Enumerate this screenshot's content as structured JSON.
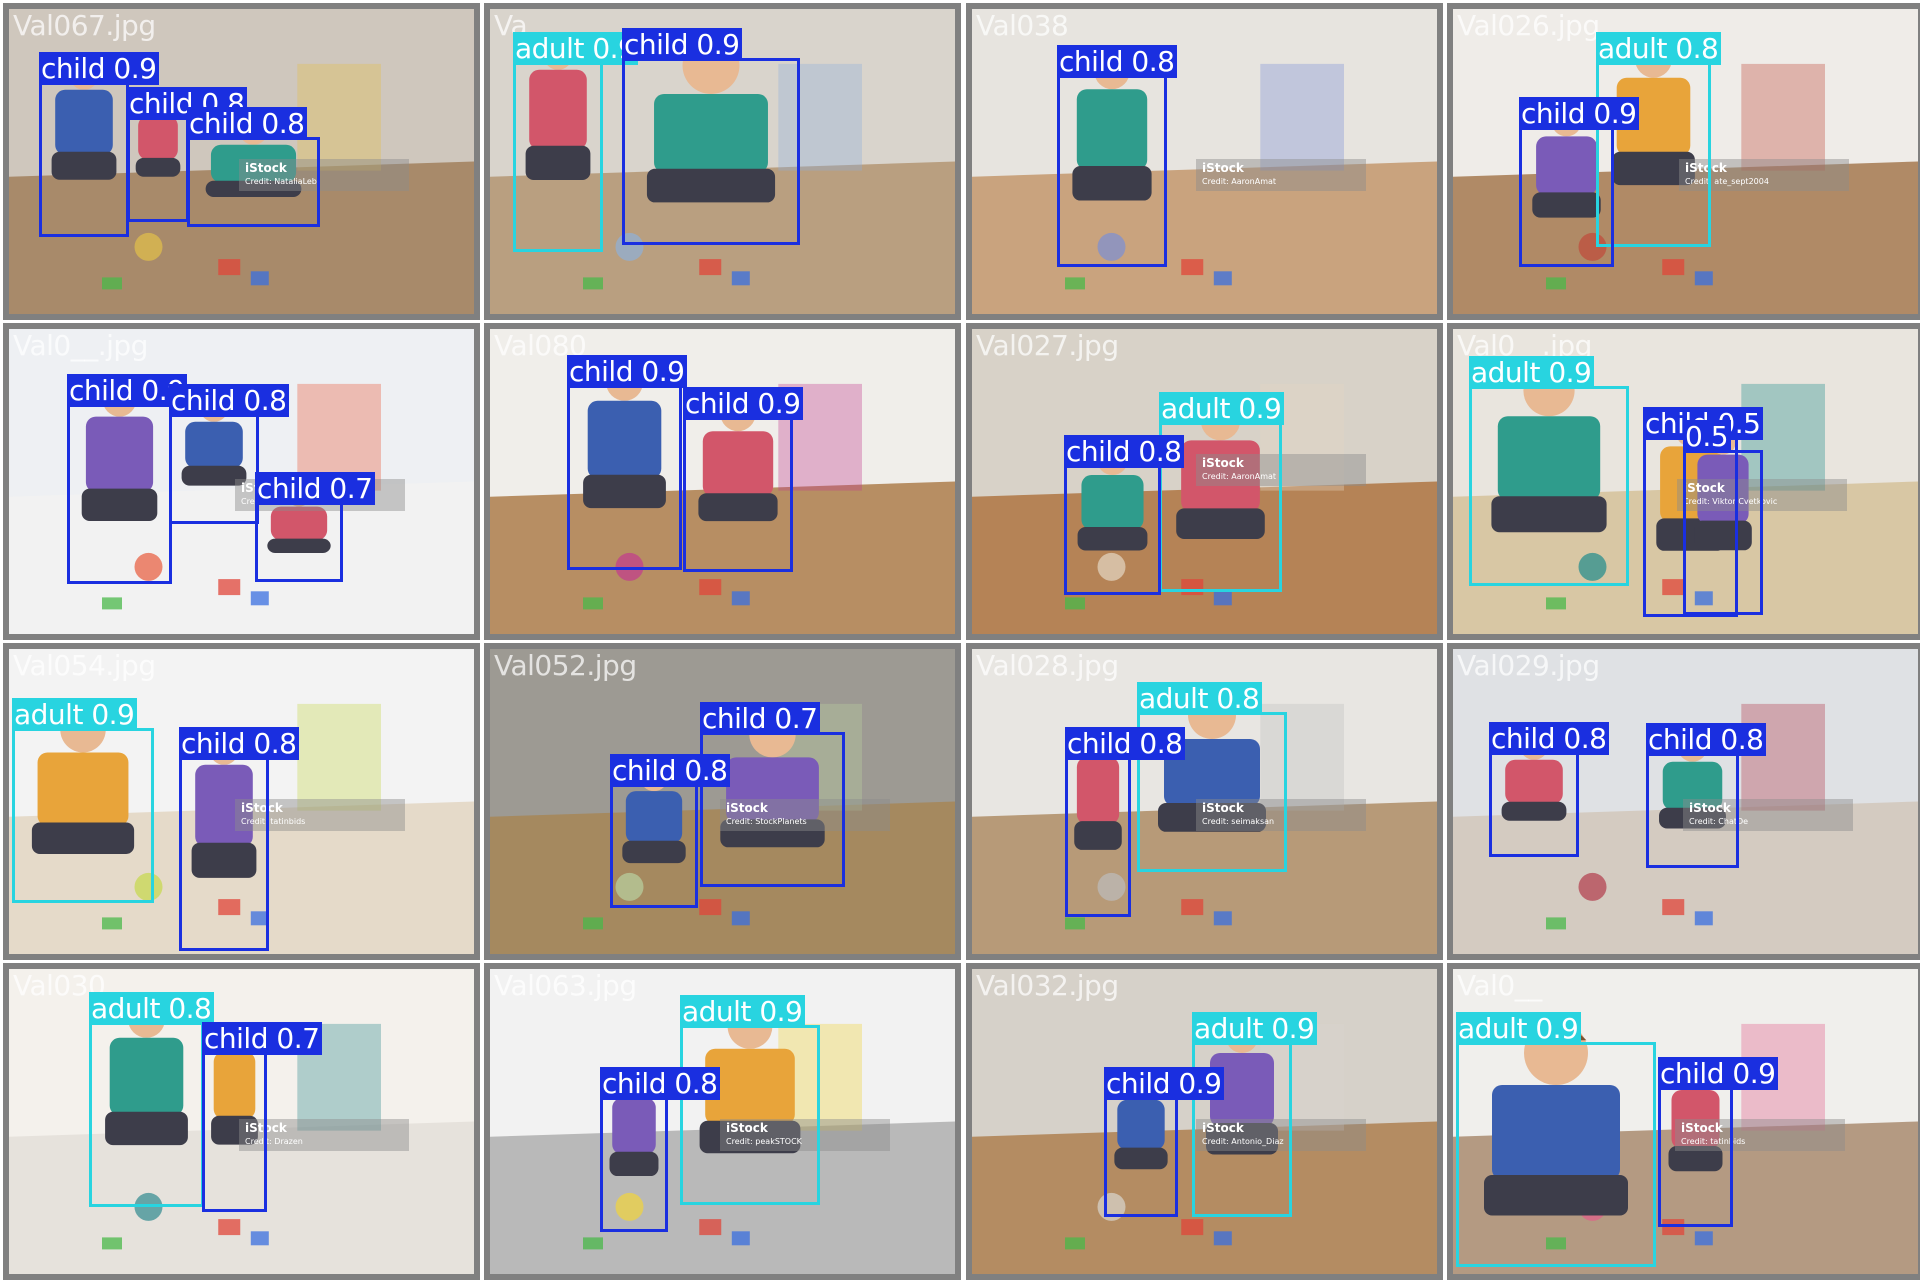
{
  "colors": {
    "child": "#1a2fe0",
    "adult": "#28d4e0",
    "border": "#808080"
  },
  "tiles": [
    {
      "filename": "Val067.jpg",
      "credit": "Credit: NataliaLeb",
      "detections": [
        {
          "label": "child 0.9",
          "cls": "child"
        },
        {
          "label": "child 0.8",
          "cls": "child"
        },
        {
          "label": "child 0.8",
          "cls": "child"
        }
      ]
    },
    {
      "filename": "Va",
      "credit": "",
      "detections": [
        {
          "label": "adult 0.9",
          "cls": "adult"
        },
        {
          "label": "child 0.9",
          "cls": "child"
        }
      ]
    },
    {
      "filename": "Val038",
      "credit": "Credit: AaronAmat",
      "detections": [
        {
          "label": "child 0.8",
          "cls": "child"
        }
      ]
    },
    {
      "filename": "Val026.jpg",
      "credit": "Credit: ate_sept2004",
      "detections": [
        {
          "label": "adult 0.8",
          "cls": "adult"
        },
        {
          "label": "child 0.9",
          "cls": "child"
        }
      ]
    },
    {
      "filename": "Val0__.jpg",
      "credit": "Credit: FamVeld",
      "detections": [
        {
          "label": "child 0.9",
          "cls": "child"
        },
        {
          "label": "child 0.8",
          "cls": "child"
        },
        {
          "label": "child 0.7",
          "cls": "child"
        }
      ]
    },
    {
      "filename": "Val080",
      "credit": "",
      "detections": [
        {
          "label": "child 0.9",
          "cls": "child"
        },
        {
          "label": "child 0.9",
          "cls": "child"
        }
      ]
    },
    {
      "filename": "Val027.jpg",
      "credit": "Credit: AaronAmat",
      "detections": [
        {
          "label": "adult 0.9",
          "cls": "adult"
        },
        {
          "label": "child 0.8",
          "cls": "child"
        }
      ]
    },
    {
      "filename": "Val0__.jpg",
      "credit": "Credit: Viktor Cvetkovic",
      "detections": [
        {
          "label": "adult 0.9",
          "cls": "adult"
        },
        {
          "label": "child 0.5",
          "cls": "child"
        },
        {
          "label": "0.5",
          "cls": "child"
        }
      ]
    },
    {
      "filename": "Val054.jpg",
      "credit": "Credit: tatinbids",
      "detections": [
        {
          "label": "adult 0.9",
          "cls": "adult"
        },
        {
          "label": "child 0.8",
          "cls": "child"
        }
      ]
    },
    {
      "filename": "Val052.jpg",
      "credit": "Credit: StockPlanets",
      "detections": [
        {
          "label": "child 0.7",
          "cls": "child"
        },
        {
          "label": "child 0.8",
          "cls": "child"
        }
      ]
    },
    {
      "filename": "Val028.jpg",
      "credit": "Credit: seimaksan",
      "detections": [
        {
          "label": "adult 0.8",
          "cls": "adult"
        },
        {
          "label": "child 0.8",
          "cls": "child"
        }
      ]
    },
    {
      "filename": "Val029.jpg",
      "credit": "Credit: ChatDe",
      "detections": [
        {
          "label": "child 0.8",
          "cls": "child"
        },
        {
          "label": "child 0.8",
          "cls": "child"
        }
      ]
    },
    {
      "filename": "Val030",
      "credit": "Credit: Drazen",
      "detections": [
        {
          "label": "adult 0.8",
          "cls": "adult"
        },
        {
          "label": "child 0.7",
          "cls": "child"
        }
      ]
    },
    {
      "filename": "Val063.jpg",
      "credit": "Credit: peakSTOCK",
      "detections": [
        {
          "label": "adult 0.9",
          "cls": "adult"
        },
        {
          "label": "child 0.8",
          "cls": "child"
        }
      ]
    },
    {
      "filename": "Val032.jpg",
      "credit": "Credit: Antonio_Diaz",
      "detections": [
        {
          "label": "adult 0.9",
          "cls": "adult"
        },
        {
          "label": "child 0.9",
          "cls": "child"
        }
      ]
    },
    {
      "filename": "Val0__",
      "credit": "Credit: tatinbids",
      "detections": [
        {
          "label": "adult 0.9",
          "cls": "adult"
        },
        {
          "label": "child 0.9",
          "cls": "child"
        }
      ]
    }
  ],
  "watermark": "iStock"
}
